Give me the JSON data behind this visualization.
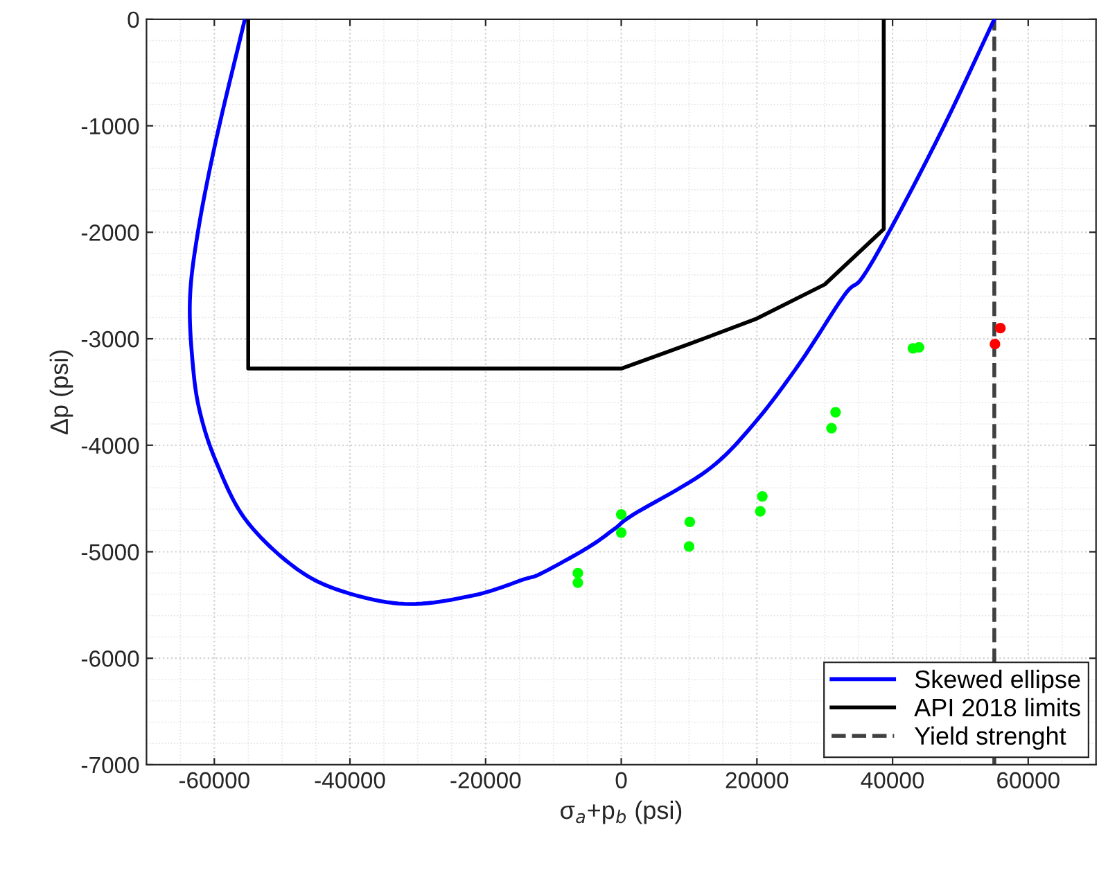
{
  "chart_data": {
    "type": "line",
    "xlabel": "σ$_{a}$+p$_{b}$ (psi)",
    "ylabel": "Δp (psi)",
    "xlim": [
      -70000,
      70000
    ],
    "xticks": [
      -60000,
      -40000,
      -20000,
      0,
      20000,
      40000,
      60000
    ],
    "ylim": [
      -7000,
      0
    ],
    "yticks": [
      -7000,
      -6000,
      -5000,
      -4000,
      -3000,
      -2000,
      -1000,
      0
    ],
    "grid": true,
    "legend": "bottom right",
    "series": [
      {
        "name": "Skewed ellipse",
        "color": "#0000ff",
        "line_style": "solid",
        "marker": "none",
        "x": [
          55000,
          47600,
          40300,
          35600,
          32900,
          26200,
          19400,
          12600,
          1800,
          -900,
          -4900,
          -11700,
          -14400,
          -21800,
          -32000,
          -42100,
          -48900,
          -55600,
          -59700,
          -62000,
          -63100,
          -63600,
          -62400,
          -59700,
          -55500
        ],
        "values": [
          0,
          -1000,
          -1900,
          -2420,
          -2590,
          -3240,
          -3810,
          -4240,
          -4650,
          -4780,
          -4960,
          -5200,
          -5260,
          -5410,
          -5490,
          -5350,
          -5110,
          -4680,
          -4160,
          -3720,
          -3290,
          -2640,
          -1990,
          -1120,
          0
        ]
      },
      {
        "name": "API 2018 limits",
        "color": "#000000",
        "line_style": "solid",
        "marker": "none",
        "x": [
          -55000,
          -55000,
          0,
          10000,
          20000,
          30000,
          38700,
          38700
        ],
        "values": [
          0,
          -3280,
          -3280,
          -3050,
          -2810,
          -2490,
          -1970,
          0
        ]
      },
      {
        "type": "scatter",
        "color": "#00ff00",
        "marker": "circle",
        "x": [
          -6400,
          -6400,
          0,
          0,
          10100,
          10000,
          20800,
          20500,
          31600,
          31000,
          43000,
          43900
        ],
        "values": [
          -5200,
          -5290,
          -4650,
          -4820,
          -4720,
          -4950,
          -4480,
          -4620,
          -3690,
          -3840,
          -3090,
          -3080
        ]
      },
      {
        "type": "scatter",
        "color": "#ff0000",
        "marker": "circle",
        "x": [
          55900,
          55100
        ],
        "values": [
          -2900,
          -3050
        ]
      }
    ],
    "ref_lines": [
      {
        "axis": "x",
        "value": 55000,
        "label": "Yield strenght",
        "color": "#404040",
        "line_style": "dashed"
      }
    ]
  }
}
